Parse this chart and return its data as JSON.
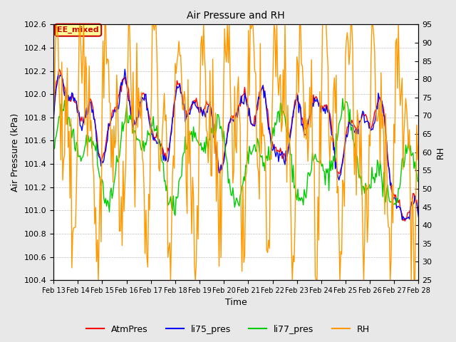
{
  "title": "Air Pressure and RH",
  "xlabel": "Time",
  "ylabel_left": "Air Pressure (kPa)",
  "ylabel_right": "RH",
  "ylim_left": [
    100.4,
    102.6
  ],
  "ylim_right": [
    25,
    95
  ],
  "yticks_left": [
    100.4,
    100.6,
    100.8,
    101.0,
    101.2,
    101.4,
    101.6,
    101.8,
    102.0,
    102.2,
    102.4,
    102.6
  ],
  "yticks_right": [
    25,
    30,
    35,
    40,
    45,
    50,
    55,
    60,
    65,
    70,
    75,
    80,
    85,
    90,
    95
  ],
  "xtick_labels": [
    "Feb 13",
    "Feb 14",
    "Feb 15",
    "Feb 16",
    "Feb 17",
    "Feb 18",
    "Feb 19",
    "Feb 20",
    "Feb 21",
    "Feb 22",
    "Feb 23",
    "Feb 24",
    "Feb 25",
    "Feb 26",
    "Feb 27",
    "Feb 28"
  ],
  "legend_labels": [
    "AtmPres",
    "li75_pres",
    "li77_pres",
    "RH"
  ],
  "colors": {
    "AtmPres": "#ff0000",
    "li75_pres": "#0000ff",
    "li77_pres": "#00cc00",
    "RH": "#ff9900"
  },
  "annotation_text": "EE_mixed",
  "annotation_color": "#cc0000",
  "annotation_bg": "#ffff99",
  "background_color": "#e8e8e8",
  "plot_bg": "#ffffff",
  "n_points": 400,
  "seed": 42
}
